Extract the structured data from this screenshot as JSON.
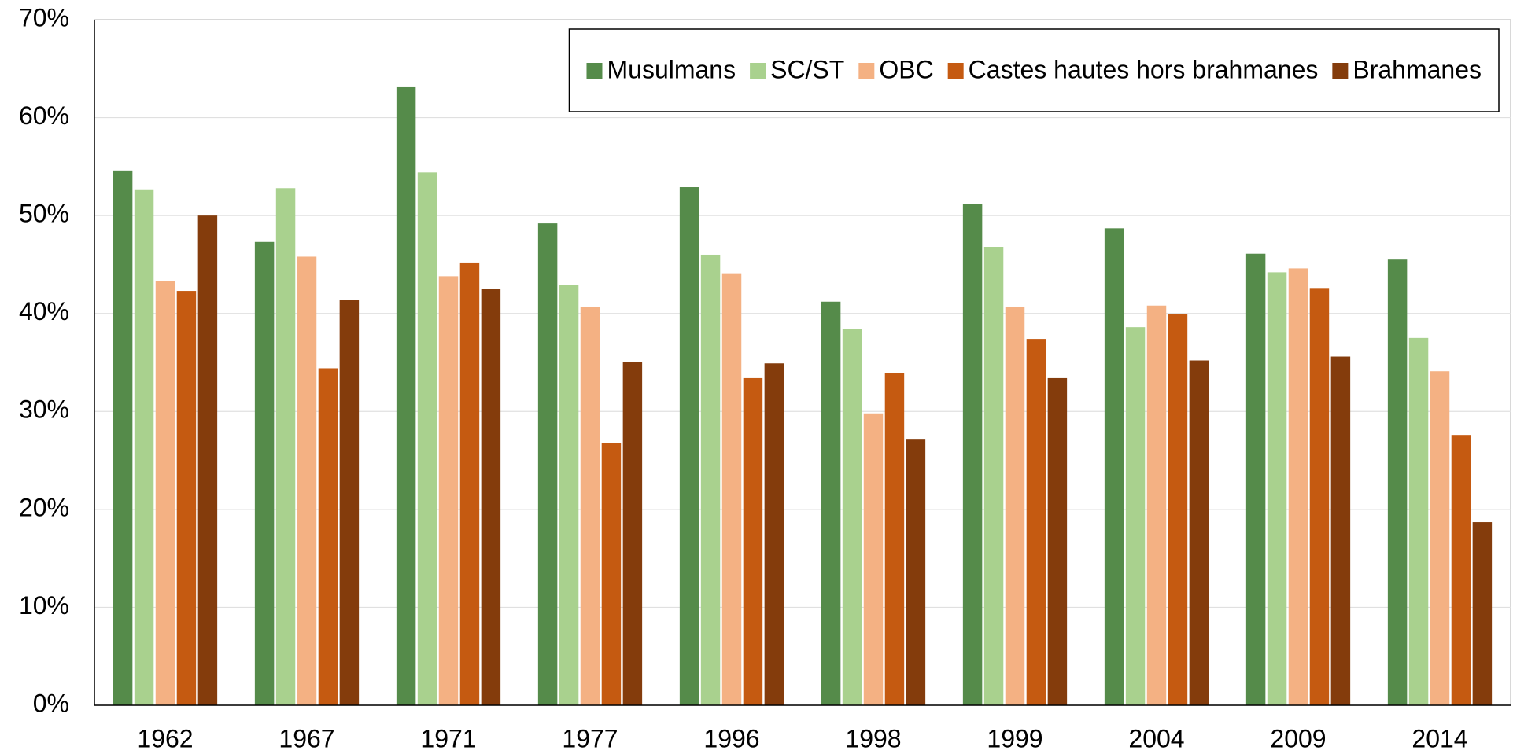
{
  "chart_data": {
    "type": "bar",
    "categories": [
      "1962",
      "1967",
      "1971",
      "1977",
      "1996",
      "1998",
      "1999",
      "2004",
      "2009",
      "2014"
    ],
    "series": [
      {
        "name": "Musulmans",
        "color": "#558b4a",
        "values": [
          54.6,
          47.3,
          63.1,
          49.2,
          52.9,
          41.2,
          51.2,
          48.7,
          46.1,
          45.5
        ]
      },
      {
        "name": "SC/ST",
        "color": "#a9d18e",
        "values": [
          52.6,
          52.8,
          54.4,
          42.9,
          46.0,
          38.4,
          46.8,
          38.6,
          44.2,
          37.5
        ]
      },
      {
        "name": "OBC",
        "color": "#f4b183",
        "values": [
          43.3,
          45.8,
          43.8,
          40.7,
          44.1,
          29.8,
          40.7,
          40.8,
          44.6,
          34.1
        ]
      },
      {
        "name": "Castes hautes hors brahmanes",
        "color": "#c55a11",
        "values": [
          42.3,
          34.4,
          45.2,
          26.8,
          33.4,
          33.9,
          37.4,
          39.9,
          42.6,
          27.6
        ]
      },
      {
        "name": "Brahmanes",
        "color": "#843c0c",
        "values": [
          50.0,
          41.4,
          42.5,
          35.0,
          34.9,
          27.2,
          33.4,
          35.2,
          35.6,
          18.7
        ]
      }
    ],
    "ylim": [
      0,
      70
    ],
    "yticks": [
      {
        "value": 0,
        "label": "0%"
      },
      {
        "value": 10,
        "label": "10%"
      },
      {
        "value": 20,
        "label": "20%"
      },
      {
        "value": 30,
        "label": "30%"
      },
      {
        "value": 40,
        "label": "40%"
      },
      {
        "value": 50,
        "label": "50%"
      },
      {
        "value": 60,
        "label": "60%"
      },
      {
        "value": 70,
        "label": "70%"
      }
    ],
    "grid": true,
    "legend": "upper right"
  }
}
